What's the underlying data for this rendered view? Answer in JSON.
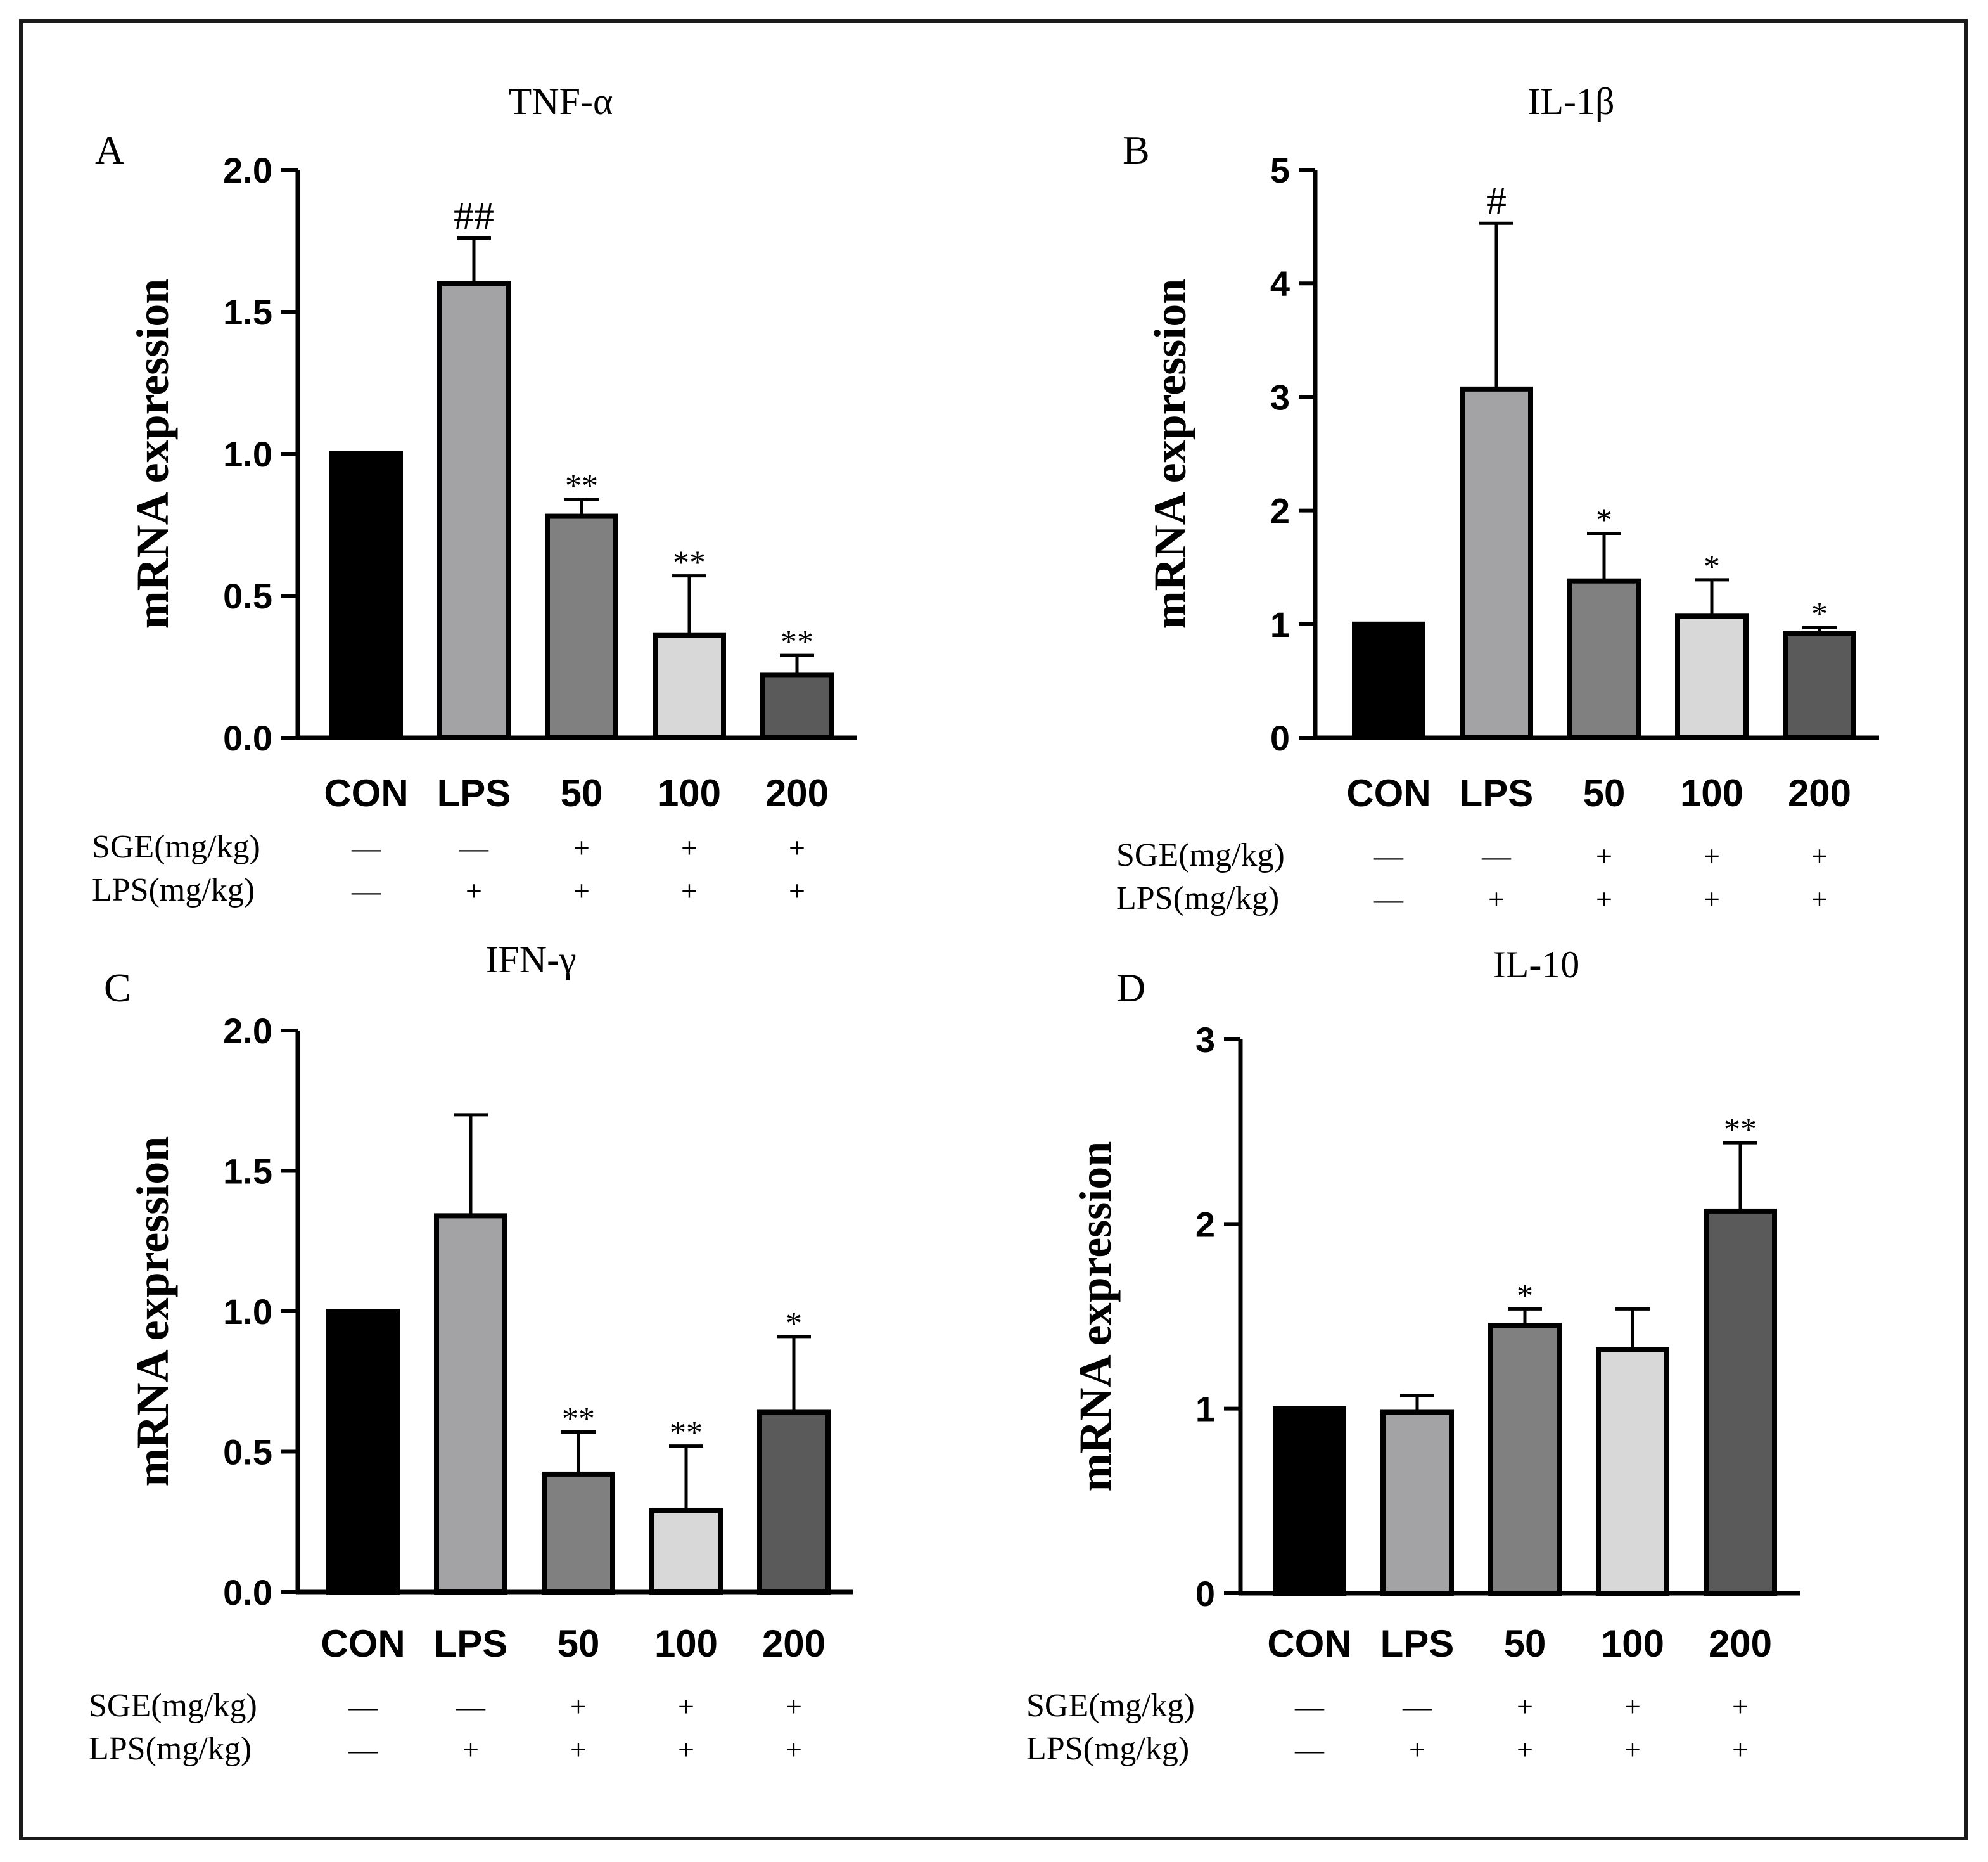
{
  "colors": {
    "CON": "#000000",
    "LPS": "#a3a3a6",
    "50": "#808080",
    "100": "#d8d8d8",
    "200": "#5a5a5a",
    "outline": "#000000"
  },
  "rows": {
    "sge_label": "SGE(mg/kg)",
    "lps_label": "LPS(mg/kg)",
    "sge_marks": [
      "—",
      "—",
      "+",
      "+",
      "+"
    ],
    "lps_marks": [
      "—",
      "+",
      "+",
      "+",
      "+"
    ]
  },
  "chart_data": [
    {
      "panel": "A",
      "type": "bar",
      "title": "TNF-α",
      "ylabel": "mRNA expression",
      "categories": [
        "CON",
        "LPS",
        "50",
        "100",
        "200"
      ],
      "values": [
        1.0,
        1.6,
        0.78,
        0.36,
        0.22
      ],
      "errors": [
        0.0,
        0.16,
        0.06,
        0.21,
        0.07
      ],
      "annotations": [
        "",
        "##",
        "**",
        "**",
        "**"
      ],
      "ylim": [
        0,
        2.0
      ],
      "yticks": [
        "0.0",
        "0.5",
        "1.0",
        "1.5",
        "2.0"
      ]
    },
    {
      "panel": "B",
      "type": "bar",
      "title": "IL-1β",
      "ylabel": "mRNA expression",
      "categories": [
        "CON",
        "LPS",
        "50",
        "100",
        "200"
      ],
      "values": [
        1.0,
        3.07,
        1.38,
        1.07,
        0.92
      ],
      "errors": [
        0.0,
        1.46,
        0.42,
        0.32,
        0.05
      ],
      "annotations": [
        "",
        "#",
        "*",
        "*",
        "*"
      ],
      "ylim": [
        0,
        5
      ],
      "yticks": [
        "0",
        "1",
        "2",
        "3",
        "4",
        "5"
      ]
    },
    {
      "panel": "C",
      "type": "bar",
      "title": "IFN-γ",
      "ylabel": "mRNA expression",
      "categories": [
        "CON",
        "LPS",
        "50",
        "100",
        "200"
      ],
      "values": [
        1.0,
        1.34,
        0.42,
        0.29,
        0.64
      ],
      "errors": [
        0.0,
        0.36,
        0.15,
        0.23,
        0.27
      ],
      "annotations": [
        "",
        "",
        "**",
        "**",
        "*"
      ],
      "ylim": [
        0,
        2.0
      ],
      "yticks": [
        "0.0",
        "0.5",
        "1.0",
        "1.5",
        "2.0"
      ]
    },
    {
      "panel": "D",
      "type": "bar",
      "title": "IL-10",
      "ylabel": "mRNA expression",
      "categories": [
        "CON",
        "LPS",
        "50",
        "100",
        "200"
      ],
      "values": [
        1.0,
        0.98,
        1.45,
        1.32,
        2.07
      ],
      "errors": [
        0.0,
        0.09,
        0.09,
        0.22,
        0.37
      ],
      "annotations": [
        "",
        "",
        "*",
        "",
        "**"
      ],
      "ylim": [
        0,
        3
      ],
      "yticks": [
        "0",
        "1",
        "2",
        "3"
      ]
    }
  ]
}
